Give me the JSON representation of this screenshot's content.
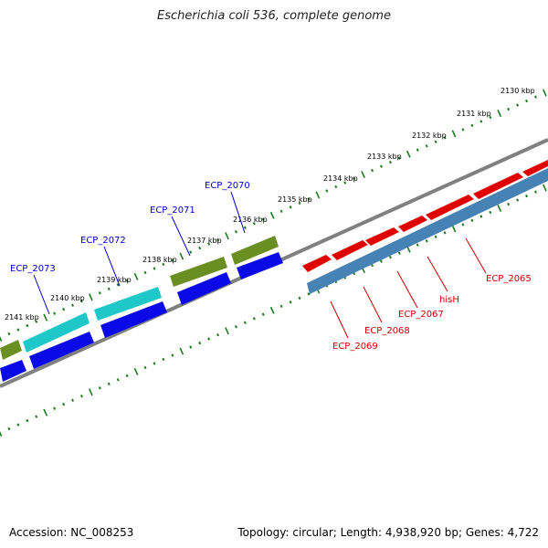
{
  "title": "Escherichia coli 536, complete genome",
  "footer": {
    "accession": "Accession: NC_008253",
    "topology": "Topology: circular; Length: 4,938,920 bp; Genes: 4,722"
  },
  "scale_labels": [
    "2130 kbp",
    "2131 kbp",
    "2132 kbp",
    "2133 kbp",
    "2134 kbp",
    "2135 kbp",
    "2136 kbp",
    "2137 kbp",
    "2138 kbp",
    "2139 kbp",
    "2140 kbp",
    "2141 kbp"
  ],
  "forward_labels": [
    "ECP_2070",
    "ECP_2071",
    "ECP_2072",
    "ECP_2073"
  ],
  "reverse_labels": [
    "ECP_2065",
    "hisH",
    "ECP_2067",
    "ECP_2068",
    "ECP_2069"
  ],
  "colors": {
    "tick": "#1e7a1e",
    "backbone": "#808080",
    "cds_red": "#e00000",
    "cds_steel": "#4682b4",
    "cds_cyan": "#1ec8c8",
    "cds_olive": "#6b8e23",
    "cds_blue": "#0a0ae6",
    "label_blue": "#0000cc",
    "label_red": "#cc0000"
  }
}
